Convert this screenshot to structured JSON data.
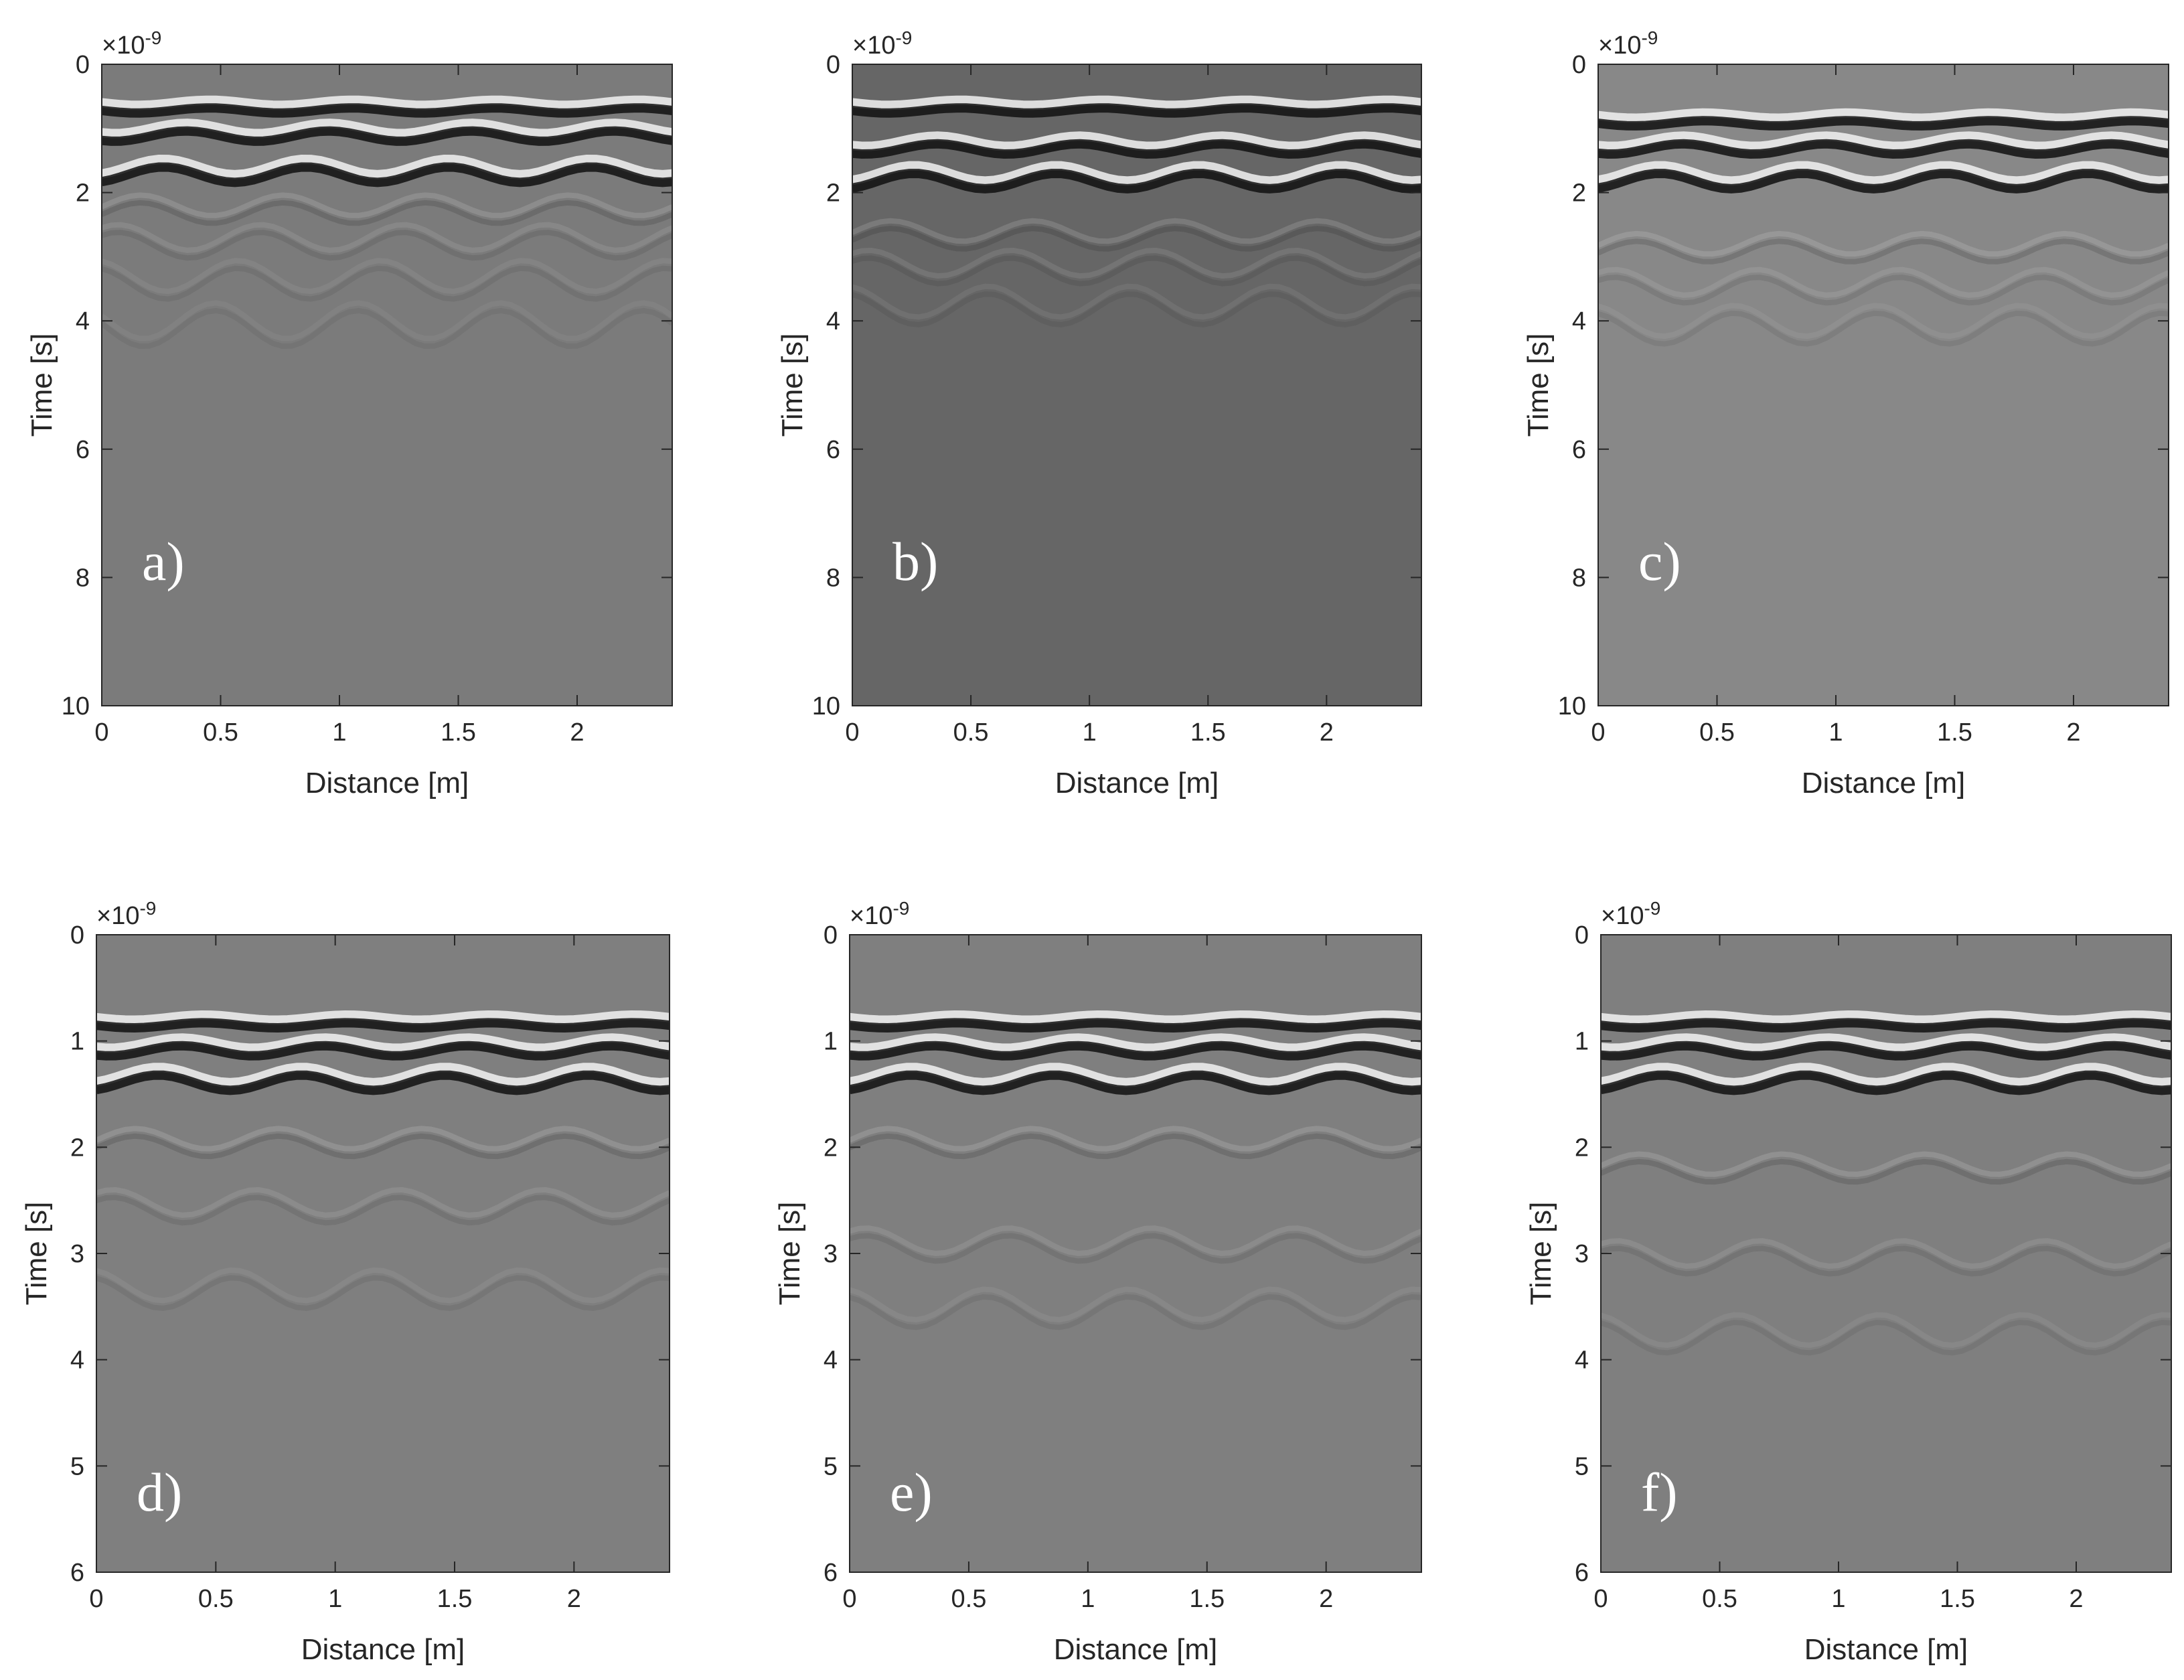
{
  "chart_data": [
    {
      "type": "image",
      "panel_label": "a)",
      "xlabel": "Distance [m]",
      "ylabel": "Time [s]",
      "y_multiplier": {
        "base": "×10",
        "exponent": "-9"
      },
      "xlim": [
        0,
        2.4
      ],
      "ylim": [
        0,
        10
      ],
      "y_reversed": true,
      "xticks": [
        0,
        0.5,
        1,
        1.5,
        2
      ],
      "yticks": [
        0,
        2,
        4,
        6,
        8,
        10
      ],
      "color": "#7b7b7b"
    },
    {
      "type": "image",
      "panel_label": "b)",
      "xlabel": "Distance [m]",
      "ylabel": "Time [s]",
      "y_multiplier": {
        "base": "×10",
        "exponent": "-9"
      },
      "xlim": [
        0,
        2.4
      ],
      "ylim": [
        0,
        10
      ],
      "y_reversed": true,
      "xticks": [
        0,
        0.5,
        1,
        1.5,
        2
      ],
      "yticks": [
        0,
        2,
        4,
        6,
        8,
        10
      ],
      "color": "#666666"
    },
    {
      "type": "image",
      "panel_label": "c)",
      "xlabel": "Distance [m]",
      "ylabel": "Time [s]",
      "y_multiplier": {
        "base": "×10",
        "exponent": "-9"
      },
      "xlim": [
        0,
        2.4
      ],
      "ylim": [
        0,
        10
      ],
      "y_reversed": true,
      "xticks": [
        0,
        0.5,
        1,
        1.5,
        2
      ],
      "yticks": [
        0,
        2,
        4,
        6,
        8,
        10
      ],
      "color": "#888888"
    },
    {
      "type": "image",
      "panel_label": "d)",
      "xlabel": "Distance [m]",
      "ylabel": "Time [s]",
      "y_multiplier": {
        "base": "×10",
        "exponent": "-9"
      },
      "xlim": [
        0,
        2.4
      ],
      "ylim": [
        0,
        6
      ],
      "y_reversed": true,
      "xticks": [
        0,
        0.5,
        1,
        1.5,
        2
      ],
      "yticks": [
        0,
        1,
        2,
        3,
        4,
        5,
        6
      ],
      "color": "#7f7f7f"
    },
    {
      "type": "image",
      "panel_label": "e)",
      "xlabel": "Distance [m]",
      "ylabel": "Time [s]",
      "y_multiplier": {
        "base": "×10",
        "exponent": "-9"
      },
      "xlim": [
        0,
        2.4
      ],
      "ylim": [
        0,
        6
      ],
      "y_reversed": true,
      "xticks": [
        0,
        0.5,
        1,
        1.5,
        2
      ],
      "yticks": [
        0,
        1,
        2,
        3,
        4,
        5,
        6
      ],
      "color": "#7f7f7f"
    },
    {
      "type": "image",
      "panel_label": "f)",
      "xlabel": "Distance [m]",
      "ylabel": "Time [s]",
      "y_multiplier": {
        "base": "×10",
        "exponent": "-9"
      },
      "xlim": [
        0,
        2.4
      ],
      "ylim": [
        0,
        6
      ],
      "y_reversed": true,
      "xticks": [
        0,
        0.5,
        1,
        1.5,
        2
      ],
      "yticks": [
        0,
        1,
        2,
        3,
        4,
        5,
        6
      ],
      "color": "#7f7f7f"
    }
  ]
}
